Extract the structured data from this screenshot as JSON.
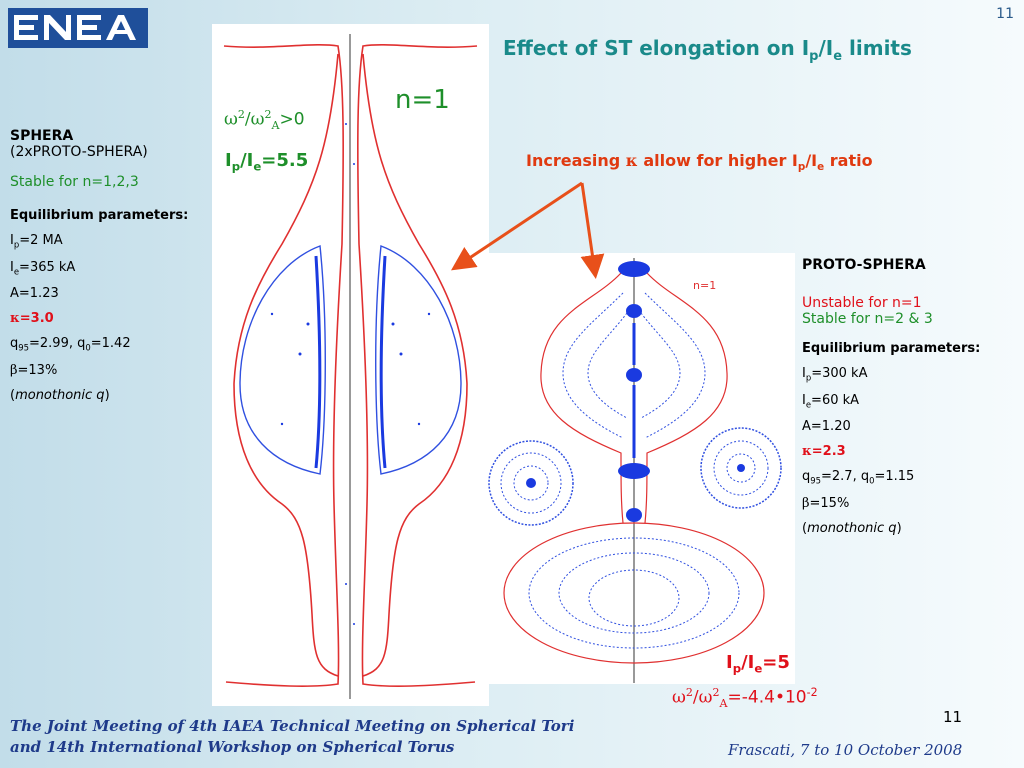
{
  "header": {
    "logo_text": "ENEA",
    "page_number": "11",
    "title_prefix": "Effect of ST elongation on I",
    "title_sub1": "p",
    "title_mid": "/I",
    "title_sub2": "e",
    "title_suffix": " limits"
  },
  "subtitle": {
    "text1": "Increasing ",
    "kappa": "κ",
    "text2": " allow for higher I",
    "sub1": "p",
    "mid": "/I",
    "sub2": "e",
    "suffix": " ratio"
  },
  "left_plot": {
    "mode_label": "n=1",
    "omega_sym": "ω",
    "omega_exp": "2",
    "slash": "/",
    "omega_a_exp": "2",
    "omega_a_sub": "A",
    "omega_value": ">0",
    "ratio_I": "I",
    "ratio_sub1": "p",
    "ratio_mid": "/I",
    "ratio_sub2": "e",
    "ratio_value": "=5.5"
  },
  "right_plot": {
    "mode_label": "n=1",
    "ratio_I": "I",
    "ratio_sub1": "p",
    "ratio_mid": "/I",
    "ratio_sub2": "e",
    "ratio_value": "=5",
    "omega_sym": "ω",
    "omega_exp": "2",
    "slash": "/",
    "omega_a_exp": "2",
    "omega_a_sub": "A",
    "omega_value_prefix": "=-4.4•10",
    "omega_value_exp": "-2"
  },
  "sphera": {
    "name": "SPHERA",
    "variant": "(2xPROTO-SPHERA)",
    "stability": "Stable for n=1,2,3",
    "params_heading": "Equilibrium parameters:",
    "ip_label": "I",
    "ip_sub": "p",
    "ip_value": "=2 MA",
    "ie_label": "I",
    "ie_sub": "e",
    "ie_value": "=365 kA",
    "aspect": "A=1.23",
    "kappa_sym": "κ",
    "kappa_value": "=3.0",
    "q95_label": "q",
    "q95_sub": "95",
    "q95_value": "=2.99, q",
    "q0_sub": "0",
    "q0_value": "=1.42",
    "beta_sym": "β",
    "beta_value": "=13%",
    "profile_open": "(",
    "profile": "monothonic q",
    "profile_close": ")"
  },
  "proto_sphera": {
    "name": "PROTO-SPHERA",
    "unstable": "Unstable for n=1",
    "stable": "Stable for n=2 & 3",
    "params_heading": "Equilibrium parameters:",
    "ip_label": "I",
    "ip_sub": "p",
    "ip_value": "=300 kA",
    "ie_label": "I",
    "ie_sub": "e",
    "ie_value": "=60 kA",
    "aspect": "A=1.20",
    "kappa_sym": "κ",
    "kappa_value": "=2.3",
    "q95_label": "q",
    "q95_sub": "95",
    "q95_value": "=2.7, q",
    "q0_sub": "0",
    "q0_value": "=1.15",
    "beta_sym": "β",
    "beta_value": "=15%",
    "profile_open": "(",
    "profile": "monothonic q",
    "profile_close": ")"
  },
  "footer": {
    "meeting_line1": "The Joint Meeting of 4th IAEA Technical Meeting on Spherical Tori",
    "meeting_line2": "and 14th International Workshop on Spherical Torus",
    "location_date": "Frascati, 7 to 10 October 2008",
    "page_number": "11"
  },
  "colors": {
    "title": "#1a8a8a",
    "accent_red": "#e03a10",
    "green": "#1e8f2a",
    "red": "#e0101a",
    "footer_blue": "#1e3a8a",
    "arrow": "#e8501a",
    "boundary": "#e03030",
    "mode": "#1a3ae0"
  }
}
